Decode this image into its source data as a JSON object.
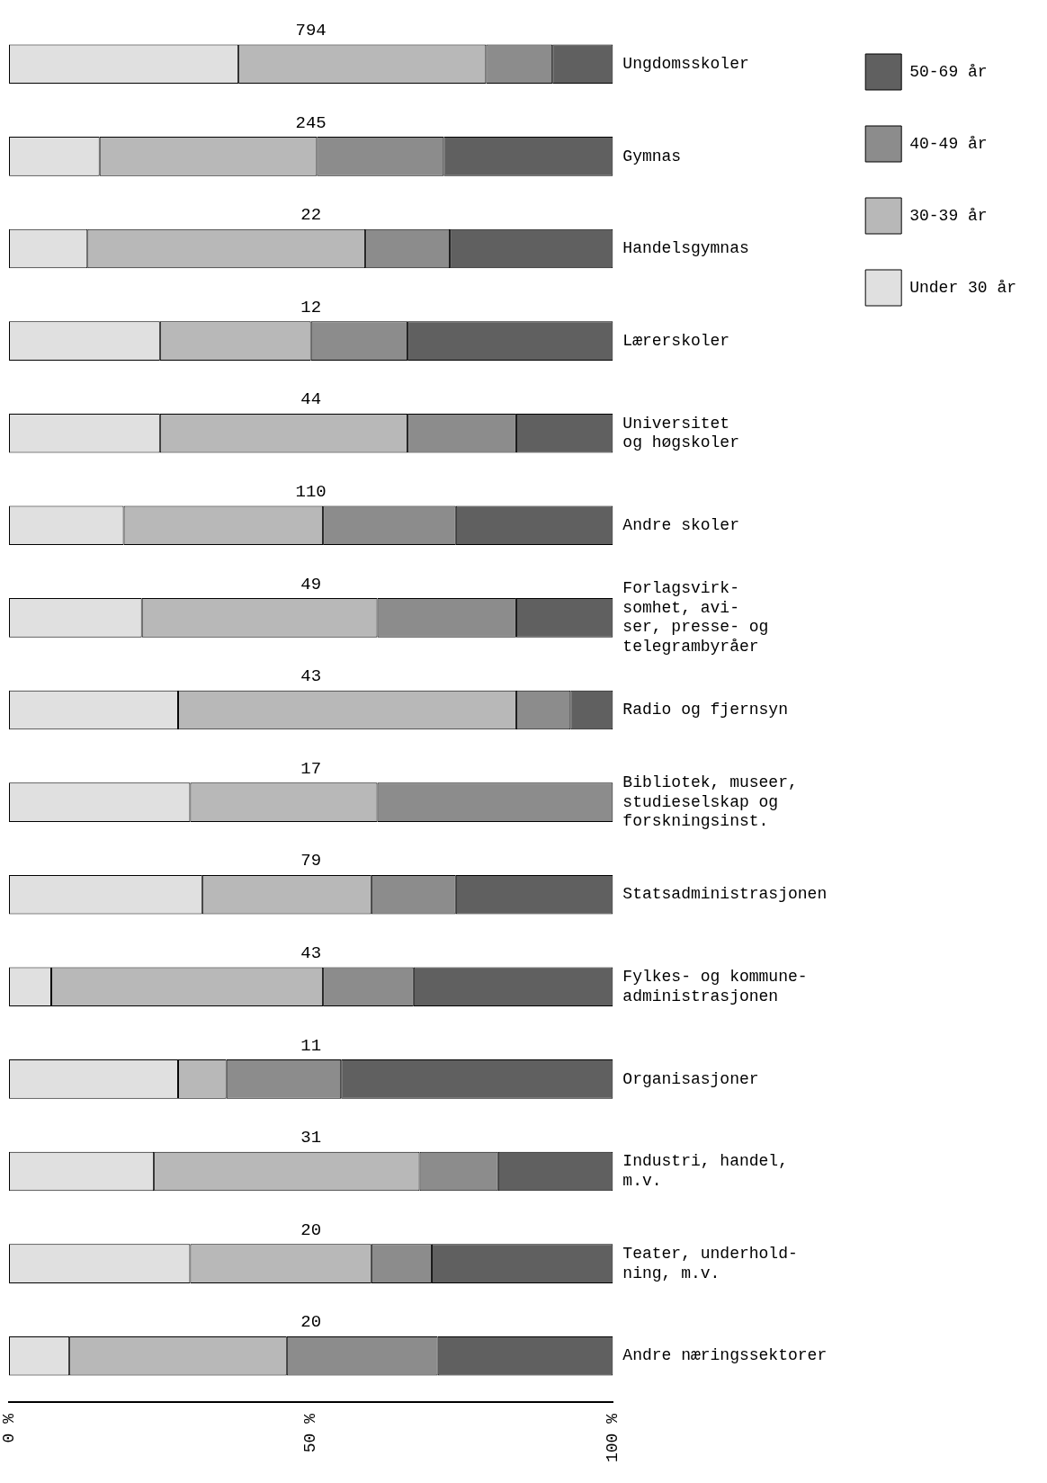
{
  "chart_data": {
    "type": "bar",
    "orientation": "horizontal",
    "stacked": true,
    "categories": [
      "Ungdomsskoler",
      "Gymnas",
      "Handelsgymnas",
      "Lærerskoler",
      "Universitet\nog høgskoler",
      "Andre skoler",
      "Forlagsvirk-\nsomhet, avi-\nser, presse- og\ntelegrambyråer",
      "Radio og fjernsyn",
      "Bibliotek, museer,\nstudieselskap og\nforskningsinst.",
      "Statsadministrasjonen",
      "Fylkes- og kommune-\nadministrasjonen",
      "Organisasjoner",
      "Industri, handel,\nm.v.",
      "Teater, underhold-\nning, m.v.",
      "Andre næringssektorer"
    ],
    "series": [
      {
        "name": "Under 30 år",
        "color": "#e0e0e0",
        "values": [
          38,
          15,
          13,
          25,
          25,
          19,
          22,
          28,
          30,
          32,
          7,
          28,
          24,
          30,
          10
        ]
      },
      {
        "name": "30-39 år",
        "color": "#b8b8b8",
        "values": [
          41,
          36,
          46,
          25,
          41,
          33,
          39,
          56,
          31,
          28,
          45,
          8,
          44,
          30,
          36
        ]
      },
      {
        "name": "40-49 år",
        "color": "#8c8c8c",
        "values": [
          11,
          21,
          14,
          16,
          18,
          22,
          23,
          9,
          39,
          14,
          15,
          19,
          13,
          10,
          25
        ]
      },
      {
        "name": "50-69 år",
        "color": "#606060",
        "values": [
          10,
          28,
          27,
          34,
          16,
          26,
          16,
          7,
          0,
          26,
          33,
          45,
          19,
          30,
          29
        ]
      }
    ],
    "annotations": [
      "794",
      "245",
      "22",
      "12",
      "44",
      "110",
      "49",
      "43",
      "17",
      "79",
      "43",
      "11",
      "31",
      "20",
      "20"
    ],
    "xlim": [
      0,
      100
    ],
    "xticks": [
      {
        "value": 0,
        "label": "0 %"
      },
      {
        "value": 50,
        "label": "50 %"
      },
      {
        "value": 100,
        "label": "100 %"
      }
    ],
    "grid": false,
    "legend": "right"
  }
}
